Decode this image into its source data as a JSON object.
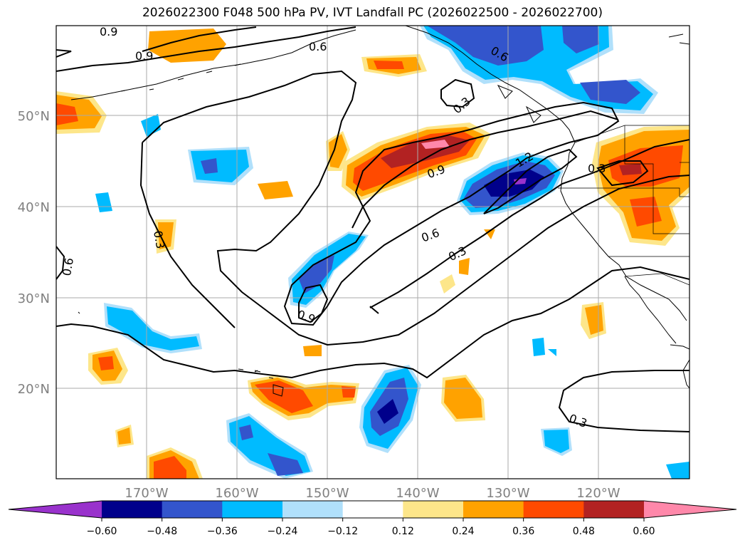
{
  "title": "2026022300 F048 500 hPa PV, IVT Landfall PC (2026022500 - 2026022700)",
  "map": {
    "lon_labels": [
      "170°W",
      "160°W",
      "150°W",
      "140°W",
      "130°W",
      "120°W"
    ],
    "lat_labels": [
      "50°N",
      "40°N",
      "30°N",
      "20°N"
    ],
    "contour_labels": [
      "0.9",
      "0.9",
      "0.6",
      "0.3",
      "0.9",
      "1.2",
      "0.3",
      "0.6",
      "0.3",
      "0.3",
      "0.9",
      "0.6",
      "0.3",
      "0.6"
    ],
    "fill_colors": {
      "light_orange": "#fde68a",
      "orange": "#ffa200",
      "red_orange": "#ff4a00",
      "dark_red": "#b22222",
      "pink": "#ff88aa",
      "light_blue": "#b0e0fb",
      "cyan": "#00bbff",
      "blue": "#3355cc",
      "navy": "#00008b",
      "purple": "#9932cc"
    }
  },
  "colorbar": {
    "colors": [
      "#9932cc",
      "#00008b",
      "#3355cc",
      "#00bbff",
      "#b0e0fb",
      "#ffffff",
      "#fde68a",
      "#ffa200",
      "#ff4a00",
      "#b22222",
      "#ff88aa"
    ],
    "ticks": [
      "−0.60",
      "−0.48",
      "−0.36",
      "−0.24",
      "−0.12",
      "0.12",
      "0.24",
      "0.36",
      "0.48",
      "0.60"
    ]
  }
}
